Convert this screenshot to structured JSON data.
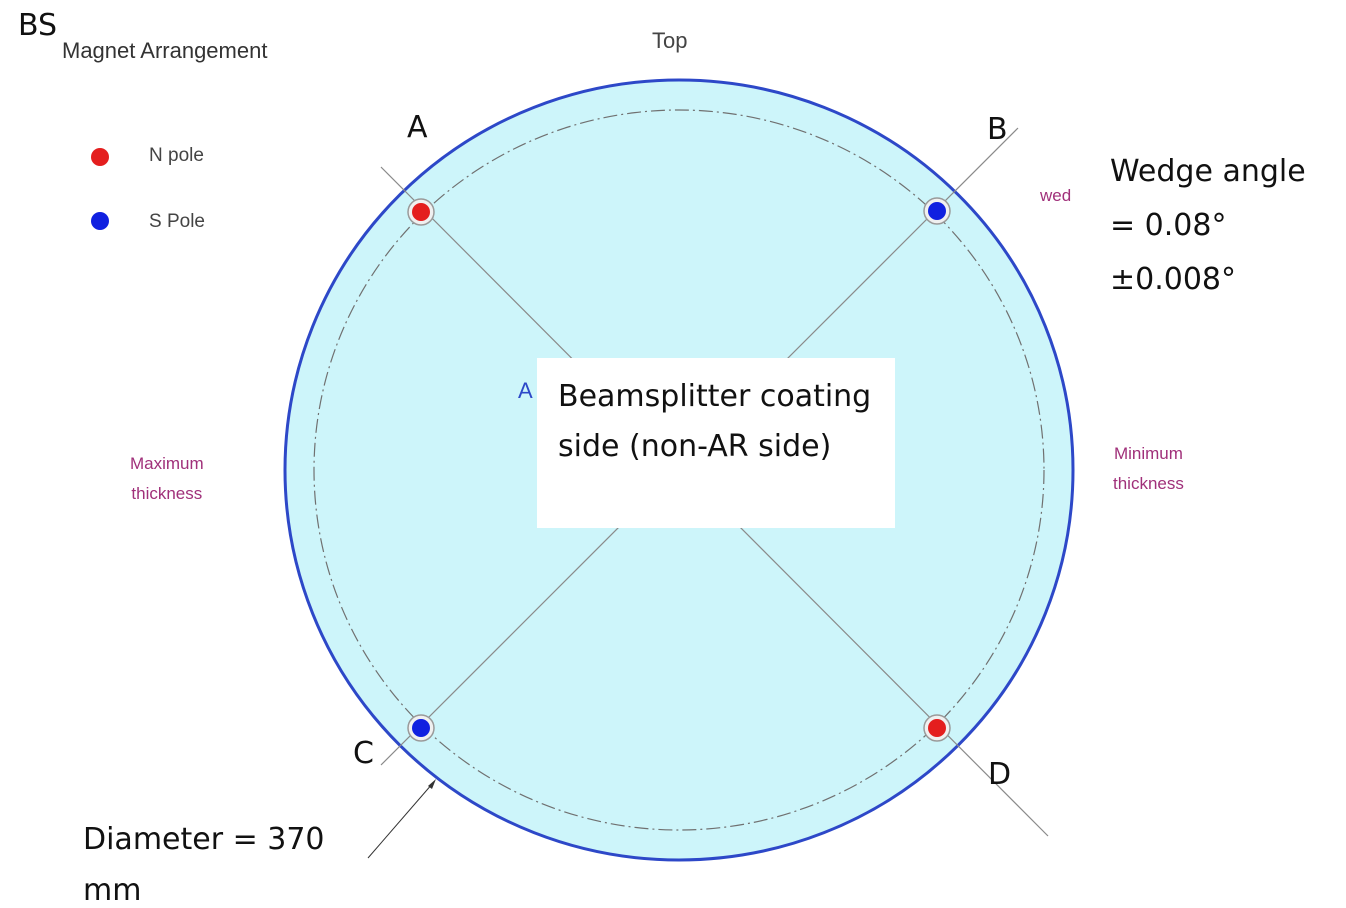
{
  "title_bs": "BS",
  "legend": {
    "title": "Magnet Arrangement",
    "items": [
      {
        "label": "N pole",
        "color": "#e41e1e"
      },
      {
        "label": "S Pole",
        "color": "#1020e0"
      }
    ]
  },
  "top_label": "Top",
  "magnets": [
    {
      "label": "A",
      "pole": "N"
    },
    {
      "label": "B",
      "pole": "S"
    },
    {
      "label": "C",
      "pole": "S"
    },
    {
      "label": "D",
      "pole": "N"
    }
  ],
  "wedge_annotation": "Wedge angle = 0.08°±0.008°",
  "wedge_partial": "wed",
  "center_partial": "A",
  "center_box": "Beamsplitter coating side (non-AR side)",
  "max_thickness": [
    "Maximum",
    "thickness"
  ],
  "min_thickness": [
    "Minimum",
    "thickness"
  ],
  "diameter": [
    "Diameter = 370",
    "mm"
  ],
  "colors": {
    "disk_fill": "#cdf5fa",
    "disk_edge": "#2d48c8",
    "n_pole": "#e41e1e",
    "s_pole": "#1020e0",
    "accent_text": "#a0307a"
  }
}
